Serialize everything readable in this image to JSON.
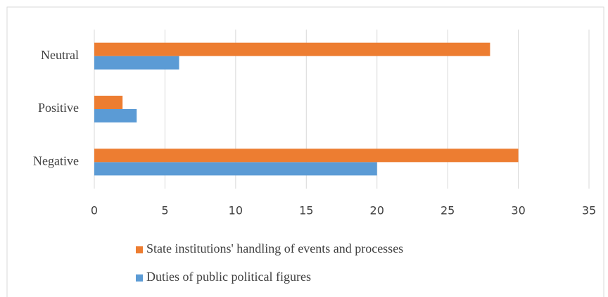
{
  "chart_data": {
    "type": "bar",
    "orientation": "horizontal",
    "categories": [
      "Negative",
      "Positive",
      "Neutral"
    ],
    "series": [
      {
        "name": "Duties of public political figures",
        "color": "#5b9bd5",
        "values": [
          20,
          3,
          6
        ]
      },
      {
        "name": "State institutions' handling of events and processes",
        "color": "#ed7d31",
        "values": [
          30,
          2,
          28
        ]
      }
    ],
    "xlim": [
      0,
      35
    ],
    "xticks": [
      0,
      5,
      10,
      15,
      20,
      25,
      30,
      35
    ],
    "grid": true
  }
}
